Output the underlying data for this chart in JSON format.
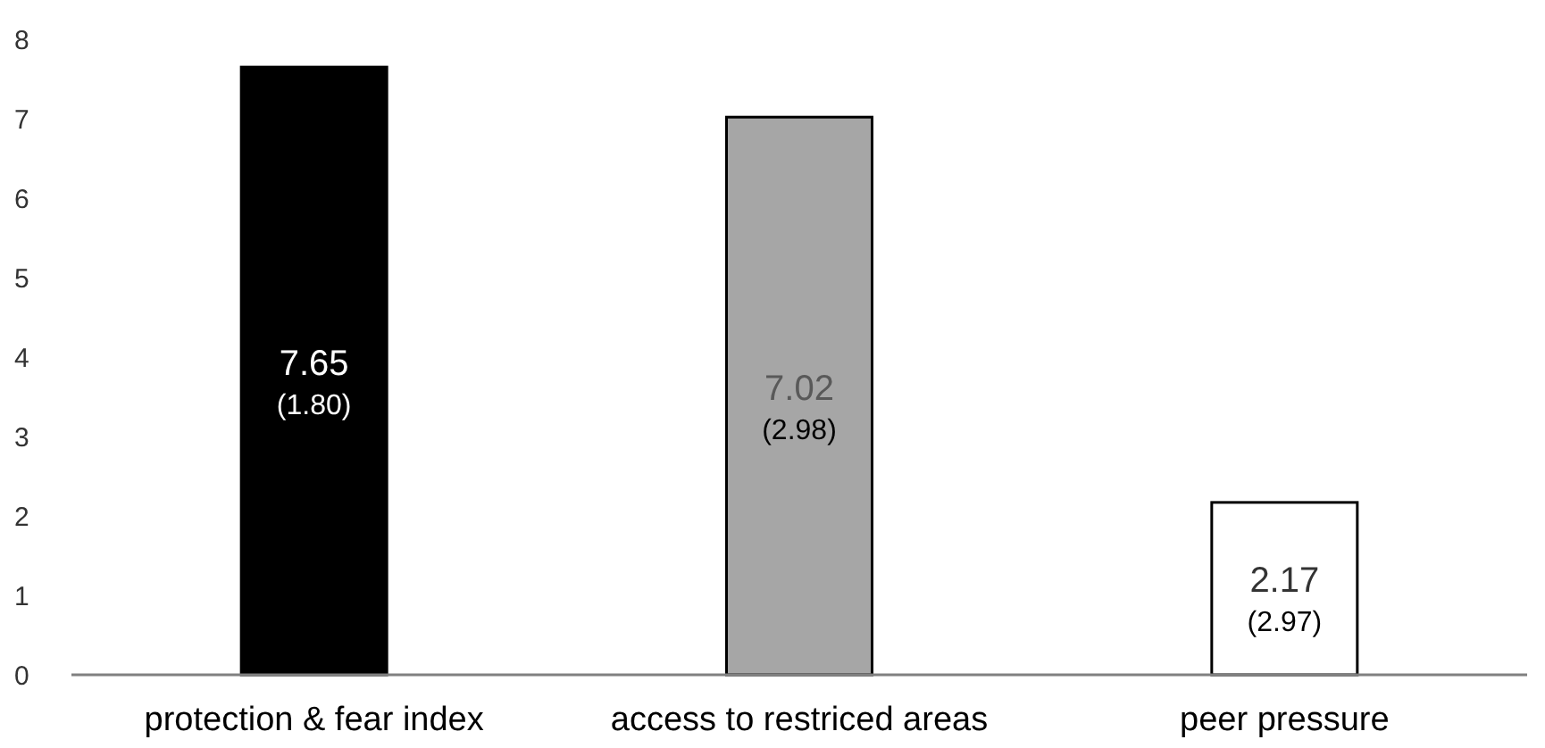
{
  "chart_data": {
    "type": "bar",
    "categories": [
      "protection & fear index",
      "access to restriced areas",
      "peer pressure"
    ],
    "values": [
      7.65,
      7.02,
      2.17
    ],
    "colors": [
      "#000000",
      "#a6a6a6",
      "#ffffff"
    ],
    "value_labels": [
      "7.65\n(1.80)",
      "7.02\n(2.98)",
      "2.17\n(2.97)"
    ],
    "ylim": [
      0,
      8
    ],
    "yticks": [
      0,
      1,
      2,
      3,
      4,
      5,
      6,
      7,
      8
    ],
    "grid": false
  }
}
